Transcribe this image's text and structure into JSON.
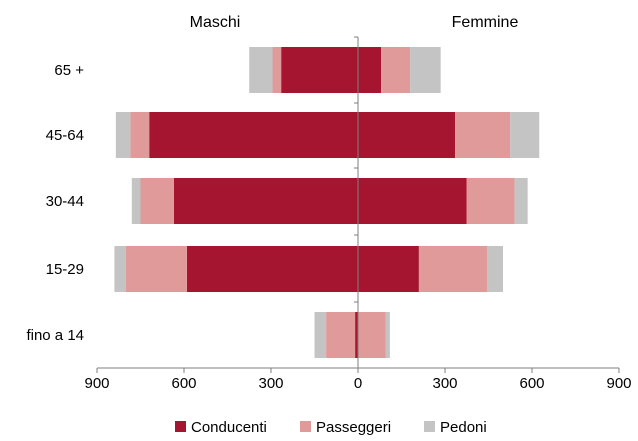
{
  "chart_data": {
    "type": "bar",
    "orientation": "horizontal-diverging",
    "left_group_label": "Maschi",
    "right_group_label": "Femmine",
    "categories": [
      "65 +",
      "45-64",
      "30-44",
      "15-29",
      "fino a 14"
    ],
    "xlim": [
      -900,
      900
    ],
    "x_ticks": [
      {
        "value": -900,
        "label": "900"
      },
      {
        "value": -600,
        "label": "600"
      },
      {
        "value": -300,
        "label": "300"
      },
      {
        "value": 0,
        "label": "0"
      },
      {
        "value": 300,
        "label": "300"
      },
      {
        "value": 600,
        "label": "600"
      },
      {
        "value": 900,
        "label": "900"
      }
    ],
    "series": [
      {
        "name": "Conducenti",
        "color": "#A6152F",
        "male": [
          265,
          720,
          635,
          590,
          10
        ],
        "female": [
          80,
          335,
          375,
          210,
          0
        ]
      },
      {
        "name": "Passeggeri",
        "color": "#E09A9A",
        "male": [
          30,
          65,
          115,
          210,
          100
        ],
        "female": [
          100,
          190,
          165,
          235,
          95
        ]
      },
      {
        "name": "Pedoni",
        "color": "#C4C4C4",
        "male": [
          80,
          50,
          30,
          40,
          40
        ],
        "female": [
          105,
          100,
          45,
          55,
          15
        ]
      }
    ],
    "legend_position": "bottom",
    "grid": false
  }
}
